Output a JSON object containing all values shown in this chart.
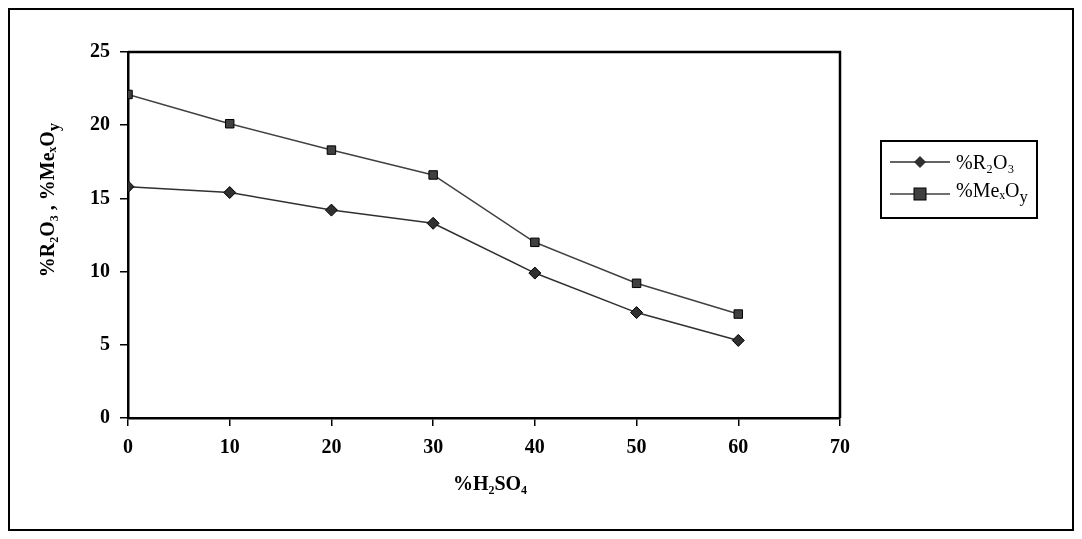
{
  "chart_data": {
    "type": "line",
    "xlabel": "%H₂SO₄",
    "ylabel": "%R₂O₃ , %MeₓO$_{y}$",
    "x": [
      0,
      10,
      20,
      30,
      40,
      50,
      60
    ],
    "series": [
      {
        "name": "%R₂O₃",
        "color": "#303030",
        "marker": "diamond",
        "values": [
          15.8,
          15.4,
          14.2,
          13.3,
          9.9,
          7.2,
          5.3
        ]
      },
      {
        "name": "%MeₓO$_{y}$",
        "color": "#404040",
        "marker": "square",
        "values": [
          22.1,
          20.1,
          18.3,
          16.6,
          12.0,
          9.2,
          7.1
        ]
      }
    ],
    "xlim": [
      0,
      70
    ],
    "xticks": [
      0,
      10,
      20,
      30,
      40,
      50,
      60,
      70
    ],
    "ylim": [
      0,
      25
    ],
    "yticks": [
      0,
      5,
      10,
      15,
      20,
      25
    ],
    "grid": false,
    "legend": "right",
    "line_style": "solid"
  }
}
